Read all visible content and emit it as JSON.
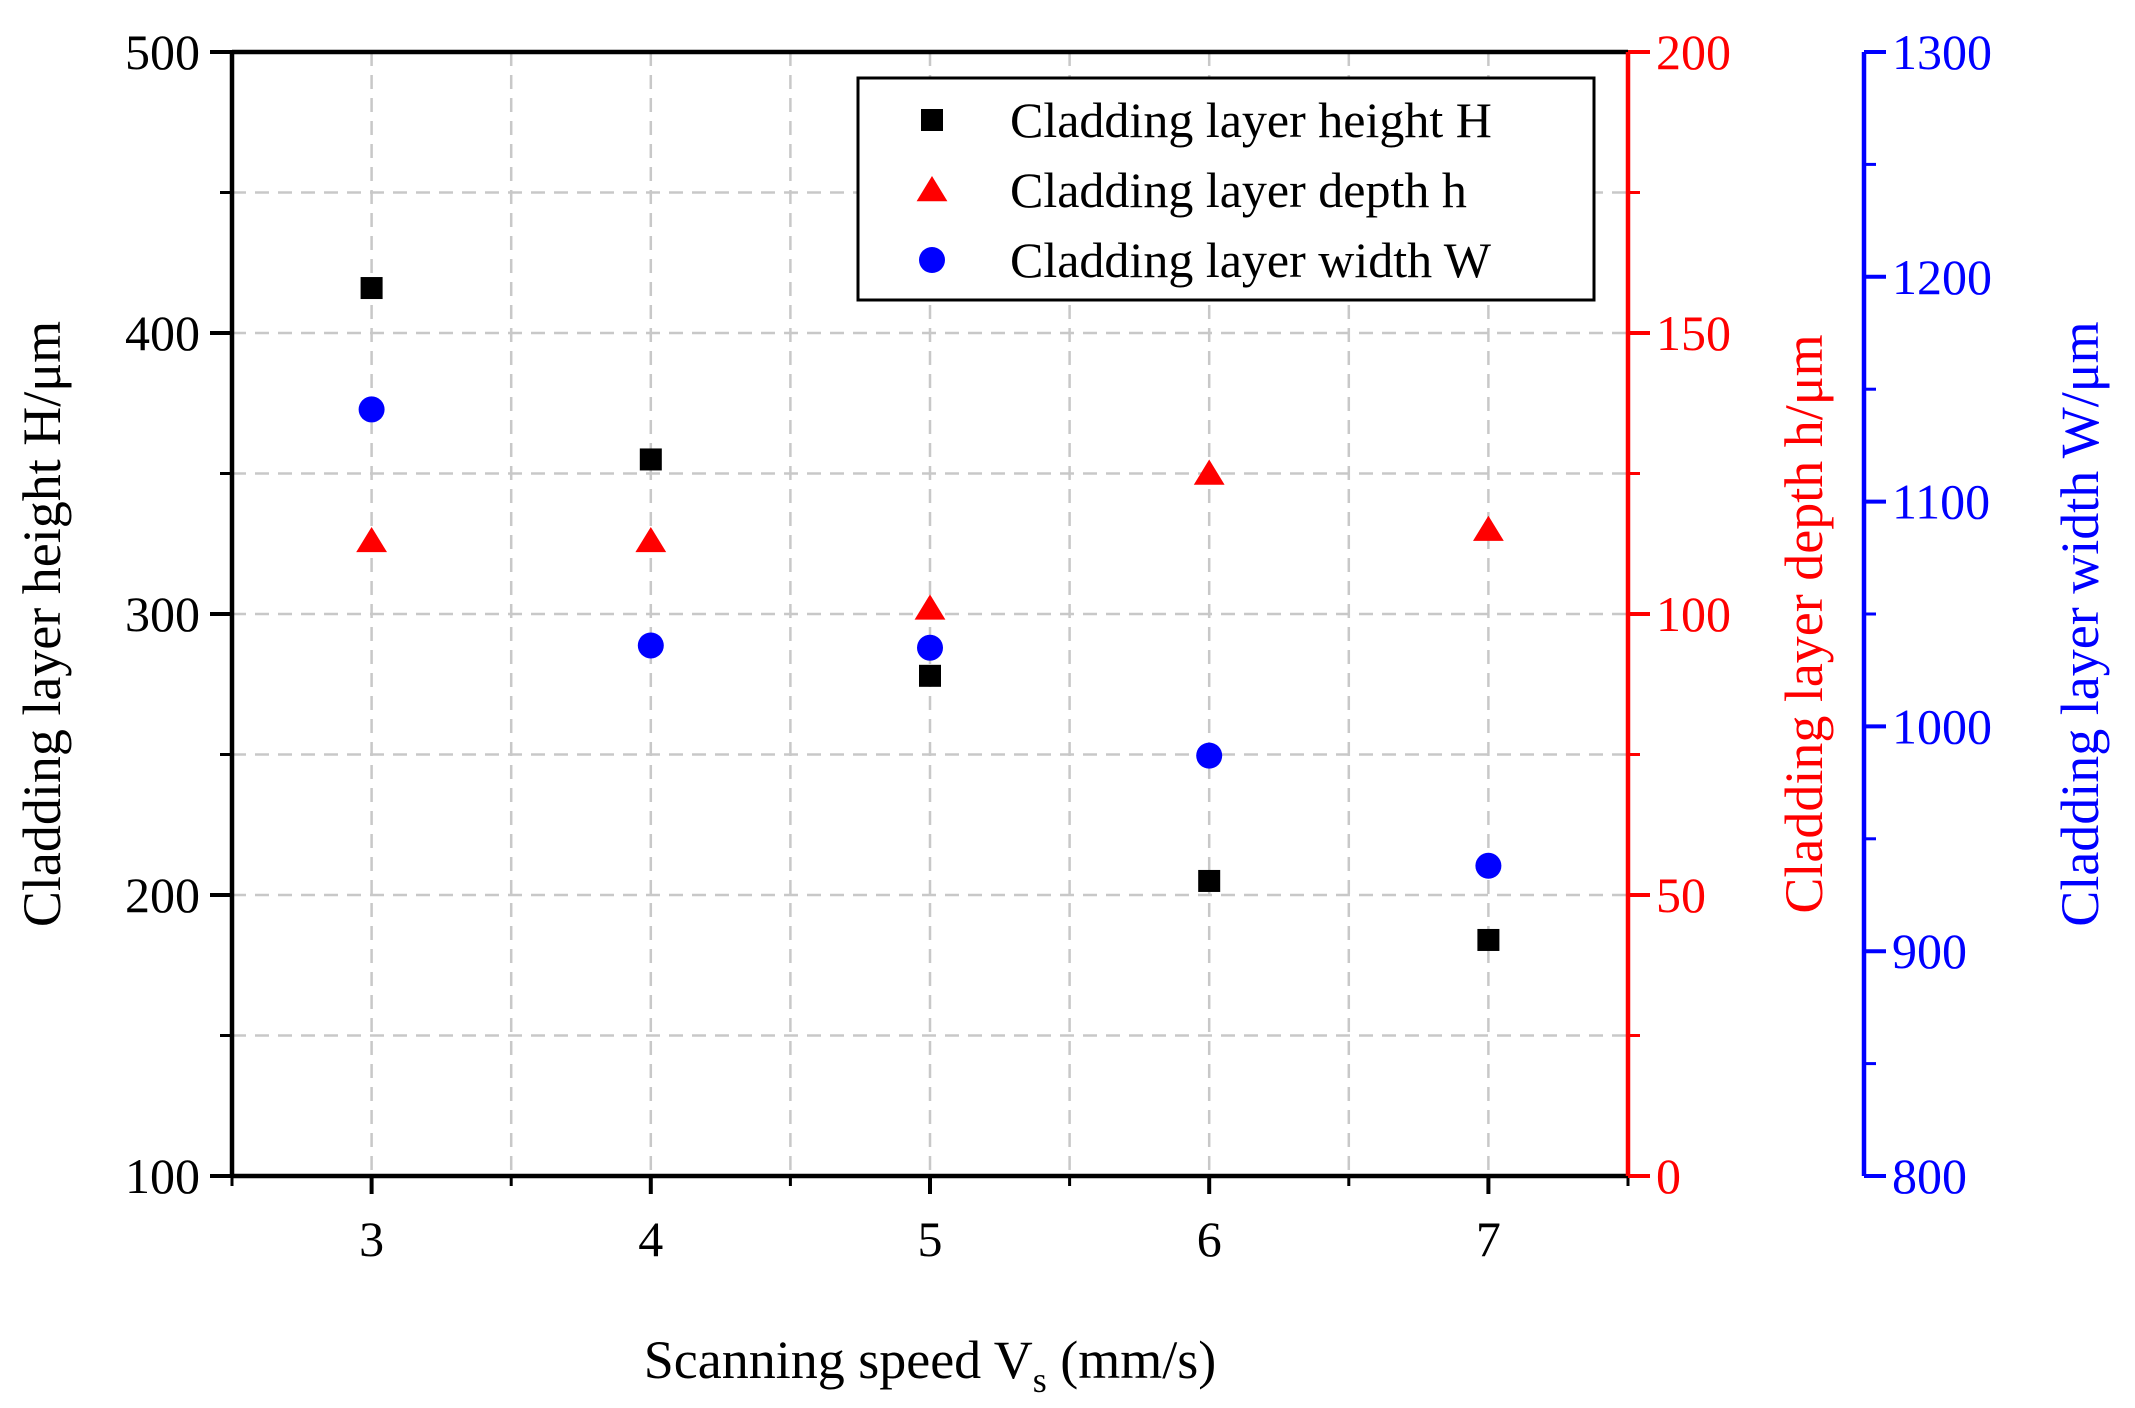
{
  "chart_data": {
    "type": "scatter",
    "x": [
      3,
      4,
      5,
      6,
      7
    ],
    "xlim": [
      2.5,
      7.5
    ],
    "xticks": [
      3,
      4,
      5,
      6,
      7
    ],
    "xlabel": {
      "main": "Scanning speed V",
      "sub": "s",
      "unit": " (mm/s)"
    },
    "grid": true,
    "legend_position": "top-right",
    "axes": [
      {
        "id": "left",
        "label": "Cladding layer height H/μm",
        "ylim": [
          100,
          500
        ],
        "ticks": [
          100,
          200,
          300,
          400,
          500
        ],
        "color": "#000000"
      },
      {
        "id": "right1",
        "label": "Cladding layer depth h/μm",
        "ylim": [
          0,
          200
        ],
        "ticks": [
          0,
          50,
          100,
          150,
          200
        ],
        "color": "#ff0000"
      },
      {
        "id": "right2",
        "label": "Cladding layer width W/μm",
        "ylim": [
          800,
          1300
        ],
        "ticks": [
          800,
          900,
          1000,
          1100,
          1200,
          1300
        ],
        "color": "#0000ff"
      }
    ],
    "series": [
      {
        "name": "Cladding layer height H",
        "axis": "left",
        "marker": "square",
        "color": "#000000",
        "values": [
          416,
          355,
          278,
          205,
          184
        ]
      },
      {
        "name": "Cladding layer depth h",
        "axis": "right1",
        "marker": "triangle",
        "color": "#ff0000",
        "values": [
          113,
          113,
          101,
          125,
          115
        ]
      },
      {
        "name": "Cladding layer width W",
        "axis": "right2",
        "marker": "circle",
        "color": "#0000ff",
        "values": [
          1141,
          1036,
          1035,
          987,
          938
        ]
      }
    ]
  }
}
